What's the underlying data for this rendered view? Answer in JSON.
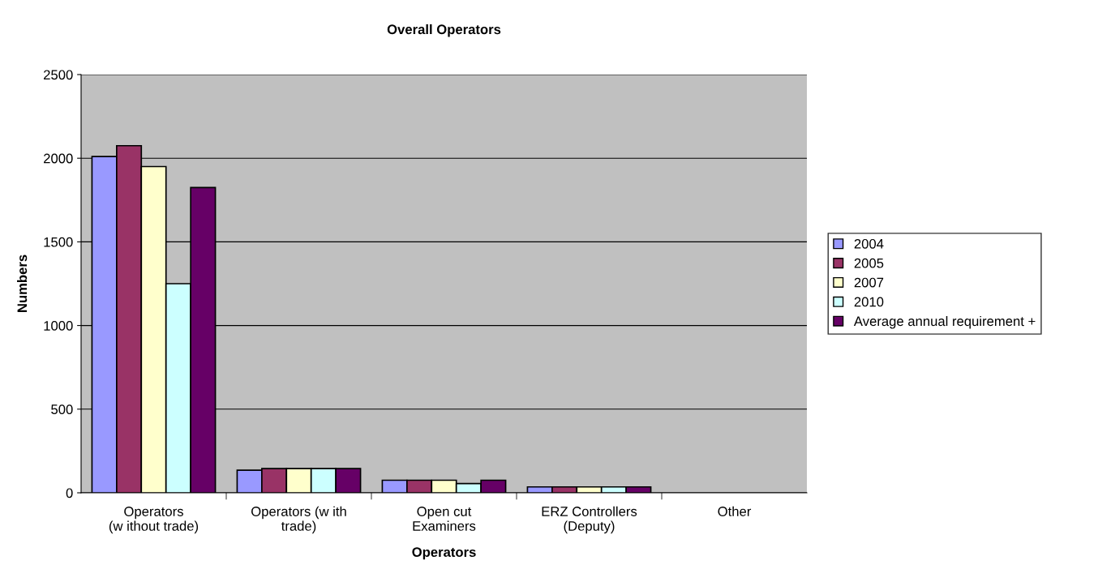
{
  "chart_data": {
    "type": "bar",
    "title": "Overall Operators",
    "xlabel": "Operators",
    "ylabel": "Numbers",
    "categories": [
      "Operators\n(w ithout trade)",
      "Operators (w ith\ntrade)",
      "Open cut\nExaminers",
      "ERZ Controllers\n(Deputy)",
      "Other"
    ],
    "series": [
      {
        "name": "2004",
        "color": "#9999ff",
        "values": [
          2010,
          135,
          75,
          35,
          null
        ]
      },
      {
        "name": "2005",
        "color": "#993366",
        "values": [
          2075,
          145,
          75,
          35,
          null
        ]
      },
      {
        "name": "2007",
        "color": "#ffffcc",
        "values": [
          1950,
          145,
          75,
          35,
          null
        ]
      },
      {
        "name": "2010",
        "color": "#ccffff",
        "values": [
          1250,
          145,
          55,
          35,
          null
        ]
      },
      {
        "name": "Average annual requirement +",
        "color": "#660066",
        "values": [
          1825,
          145,
          75,
          35,
          null
        ]
      }
    ],
    "ylim": [
      0,
      2500
    ],
    "yticks": [
      0,
      500,
      1000,
      1500,
      2000,
      2500
    ],
    "grid": "y",
    "legend": "right"
  }
}
